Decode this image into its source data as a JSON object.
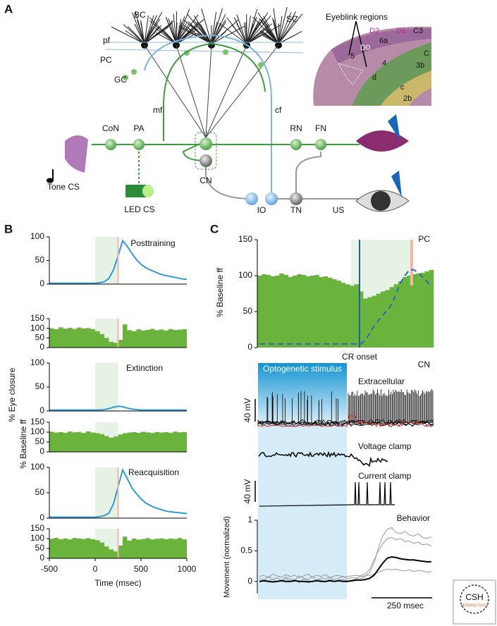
{
  "panel_labels": {
    "a": "A",
    "b": "B",
    "c": "C"
  },
  "diagram": {
    "BC": "BC",
    "SC": "SC",
    "pf": "pf",
    "PC": "PC",
    "GC": "GC",
    "mf": "mf",
    "cf": "cf",
    "CoN": "CoN",
    "PA": "PA",
    "RN": "RN",
    "FN": "FN",
    "CN": "CN",
    "IO": "IO",
    "TN": "TN",
    "US": "US",
    "tone": "Tone CS",
    "led": "LED CS",
    "eyeblink": "Eyeblink regions",
    "D2": "D2",
    "D1": "D1",
    "C3": "C3",
    "6a": "6a",
    "D0": "D0",
    "5": "5",
    "C": "C",
    "4": "4",
    "3b": "3b",
    "d": "d",
    "c": "c",
    "2b": "2b"
  },
  "cn": {
    "title": "CN",
    "stimulus": "Optogenetic stimulus",
    "extracellular": "Extracellular",
    "voltage_clamp": "Voltage clamp",
    "current_clamp": "Current clamp",
    "scale_v1": "40 mV",
    "scale_v2": "40 mV",
    "scale_t": "250 msec"
  },
  "logo": {
    "name": "CSH",
    "sub": "PERSPECTIVES"
  },
  "chart_data": [
    {
      "type": "line",
      "title": "Posttraining",
      "color": "#2f9bd6",
      "xlim": [
        -500,
        1000
      ],
      "shade": [
        0,
        250
      ],
      "us_time": 250,
      "ylim": [
        0,
        100
      ],
      "yticks": [
        0,
        50,
        100
      ],
      "x": [
        -500,
        -450,
        -400,
        -350,
        -300,
        -250,
        -200,
        -150,
        -100,
        -50,
        0,
        50,
        100,
        150,
        200,
        250,
        300,
        350,
        400,
        450,
        500,
        550,
        600,
        650,
        700,
        750,
        800,
        850,
        900,
        950,
        1000
      ],
      "values": [
        2,
        2,
        2,
        2,
        2,
        2,
        2,
        2,
        2,
        2,
        2,
        3,
        5,
        12,
        30,
        60,
        92,
        80,
        65,
        52,
        42,
        35,
        30,
        26,
        22,
        19,
        17,
        15,
        13,
        11,
        10
      ]
    },
    {
      "type": "histogram",
      "color": "#6ab43e",
      "xlim": [
        -500,
        1000
      ],
      "shade": [
        0,
        250
      ],
      "us_time": 250,
      "ylim": [
        0,
        150
      ],
      "yticks": [
        0,
        50,
        100,
        150
      ],
      "bins": [
        -500,
        -450,
        -400,
        -350,
        -300,
        -250,
        -200,
        -150,
        -100,
        -50,
        0,
        50,
        100,
        150,
        200,
        250,
        300,
        350,
        400,
        450,
        500,
        550,
        600,
        650,
        700,
        750,
        800,
        850,
        900,
        950,
        1000
      ],
      "values": [
        100,
        95,
        105,
        98,
        102,
        97,
        104,
        99,
        101,
        96,
        85,
        70,
        50,
        30,
        25,
        40,
        120,
        90,
        85,
        95,
        88,
        92,
        97,
        90,
        94,
        88,
        96,
        91,
        93,
        95
      ]
    },
    {
      "type": "line",
      "title": "Extinction",
      "ylabel": "% Eye closure",
      "color": "#2f9bd6",
      "xlim": [
        -500,
        1000
      ],
      "shade": [
        0,
        250
      ],
      "ylim": [
        0,
        100
      ],
      "yticks": [
        0,
        50,
        100
      ],
      "x": [
        -500,
        -450,
        -400,
        -350,
        -300,
        -250,
        -200,
        -150,
        -100,
        -50,
        0,
        50,
        100,
        150,
        200,
        250,
        300,
        350,
        400,
        450,
        500,
        550,
        600,
        650,
        700,
        750,
        800,
        850,
        900,
        950,
        1000
      ],
      "values": [
        2,
        2,
        2,
        2,
        2,
        2,
        2,
        2,
        2,
        2,
        2,
        2,
        3,
        5,
        8,
        10,
        9,
        6,
        4,
        3,
        2,
        2,
        2,
        2,
        2,
        2,
        2,
        2,
        2,
        2,
        2
      ]
    },
    {
      "type": "histogram",
      "ylabel": "% Baseline ff",
      "color": "#6ab43e",
      "xlim": [
        -500,
        1000
      ],
      "shade": [
        0,
        250
      ],
      "ylim": [
        0,
        150
      ],
      "yticks": [
        0,
        50,
        100,
        150
      ],
      "bins": [
        -500,
        -450,
        -400,
        -350,
        -300,
        -250,
        -200,
        -150,
        -100,
        -50,
        0,
        50,
        100,
        150,
        200,
        250,
        300,
        350,
        400,
        450,
        500,
        550,
        600,
        650,
        700,
        750,
        800,
        850,
        900,
        950,
        1000
      ],
      "values": [
        102,
        98,
        100,
        97,
        103,
        99,
        101,
        96,
        104,
        98,
        95,
        90,
        80,
        72,
        78,
        88,
        95,
        98,
        100,
        97,
        102,
        99,
        96,
        101,
        98,
        100,
        97,
        103,
        99,
        100
      ]
    },
    {
      "type": "line",
      "title": "Reacquisition",
      "color": "#2f9bd6",
      "xlim": [
        -500,
        1000
      ],
      "shade": [
        0,
        250
      ],
      "us_time": 250,
      "ylim": [
        0,
        100
      ],
      "yticks": [
        0,
        50,
        100
      ],
      "x": [
        -500,
        -450,
        -400,
        -350,
        -300,
        -250,
        -200,
        -150,
        -100,
        -50,
        0,
        50,
        100,
        150,
        200,
        250,
        300,
        350,
        400,
        450,
        500,
        550,
        600,
        650,
        700,
        750,
        800,
        850,
        900,
        950,
        1000
      ],
      "values": [
        2,
        2,
        2,
        2,
        2,
        2,
        2,
        2,
        2,
        2,
        2,
        3,
        5,
        10,
        28,
        62,
        95,
        78,
        60,
        48,
        38,
        30,
        25,
        21,
        18,
        15,
        13,
        12,
        11,
        10,
        9
      ]
    },
    {
      "type": "histogram",
      "color": "#6ab43e",
      "xlim": [
        -500,
        1000
      ],
      "shade": [
        0,
        250
      ],
      "us_time": 250,
      "ylim": [
        0,
        150
      ],
      "yticks": [
        0,
        50,
        100,
        150
      ],
      "xticks": [
        -500,
        0,
        500,
        1000
      ],
      "xlabel": "Time (msec)",
      "bins": [
        -500,
        -450,
        -400,
        -350,
        -300,
        -250,
        -200,
        -150,
        -100,
        -50,
        0,
        50,
        100,
        150,
        200,
        250,
        300,
        350,
        400,
        450,
        500,
        550,
        600,
        650,
        700,
        750,
        800,
        850,
        900,
        950,
        1000
      ],
      "values": [
        99,
        104,
        97,
        101,
        96,
        103,
        100,
        98,
        102,
        97,
        92,
        80,
        60,
        45,
        35,
        65,
        110,
        90,
        100,
        95,
        98,
        102,
        96,
        99,
        101,
        97,
        100,
        98,
        103,
        96
      ]
    },
    {
      "type": "bar",
      "title": "PC",
      "ylabel": "% Baseline ff",
      "annotation": "CR onset",
      "color": "#6ab43e",
      "ylim": [
        0,
        150
      ],
      "yticks": [
        0,
        50,
        100,
        150
      ],
      "values": [
        100,
        102,
        101,
        99,
        100,
        103,
        101,
        98,
        100,
        102,
        101,
        99,
        100,
        101,
        98,
        99,
        97,
        95,
        93,
        90,
        88,
        86,
        88,
        78,
        68,
        70,
        72,
        75,
        78,
        80,
        84,
        88,
        92,
        98,
        100,
        102,
        103,
        104,
        106,
        108
      ],
      "overlay": {
        "color": "#2a6db5",
        "values": [
          5,
          5,
          5,
          5,
          5,
          5,
          5,
          5,
          5,
          5,
          5,
          5,
          5,
          5,
          5,
          5,
          5,
          5,
          5,
          5,
          5,
          5,
          5,
          5,
          10,
          20,
          30,
          38,
          45,
          52,
          60,
          75,
          90,
          100,
          108,
          108,
          104,
          98,
          92,
          85
        ]
      }
    },
    {
      "type": "line",
      "title": "Behavior",
      "ylabel": "Movement (normalized)",
      "color": "#000000",
      "trace_color": "#999999",
      "ylim": [
        -0.2,
        1
      ],
      "yticks": [
        0,
        0.5,
        1
      ],
      "values": [
        0,
        0.01,
        0,
        -0.01,
        0,
        0.01,
        0,
        0,
        0.01,
        0,
        0,
        -0.01,
        0,
        0.01,
        0,
        0,
        0.01,
        0,
        0.01,
        0,
        0,
        0.01,
        0.02,
        0.02,
        0.03,
        0.05,
        0.1,
        0.2,
        0.3,
        0.38,
        0.4,
        0.39,
        0.37,
        0.36,
        0.35,
        0.35,
        0.34,
        0.33,
        0.32,
        0.32
      ],
      "traces": [
        [
          0.05,
          0.02,
          0.08,
          0.03,
          0.06,
          0.01,
          0.07,
          0.04,
          0.02,
          0.09,
          0.05,
          0.03,
          0.08,
          0.02,
          0.06,
          0.04,
          0.07,
          0.03,
          0.05,
          0.08,
          0.04,
          0.06,
          0.05,
          0.1,
          0.12,
          0.2,
          0.35,
          0.5,
          0.62,
          0.7,
          0.72,
          0.68,
          0.7,
          0.65,
          0.66,
          0.62,
          0.64,
          0.6,
          0.61,
          0.58
        ],
        [
          -0.02,
          0.03,
          0.0,
          0.04,
          -0.01,
          0.02,
          0.05,
          0.0,
          0.03,
          -0.02,
          0.04,
          0.01,
          0.0,
          0.03,
          0.02,
          -0.01,
          0.04,
          0.0,
          0.02,
          0.03,
          0.01,
          0.02,
          0.04,
          0.05,
          0.08,
          0.15,
          0.3,
          0.55,
          0.75,
          0.85,
          0.88,
          0.8,
          0.78,
          0.82,
          0.76,
          0.74,
          0.78,
          0.72,
          0.7,
          0.73
        ],
        [
          0.08,
          0.1,
          0.06,
          0.12,
          0.09,
          0.07,
          0.11,
          0.08,
          0.1,
          0.06,
          0.09,
          0.12,
          0.07,
          0.1,
          0.08,
          0.11,
          0.06,
          0.09,
          0.1,
          0.07,
          0.08,
          0.09,
          0.1,
          0.08,
          0.09,
          0.1,
          0.12,
          0.15,
          0.18,
          0.2,
          0.19,
          0.2,
          0.18,
          0.17,
          0.19,
          0.16,
          0.18,
          0.17,
          0.15,
          0.16
        ]
      ]
    }
  ]
}
